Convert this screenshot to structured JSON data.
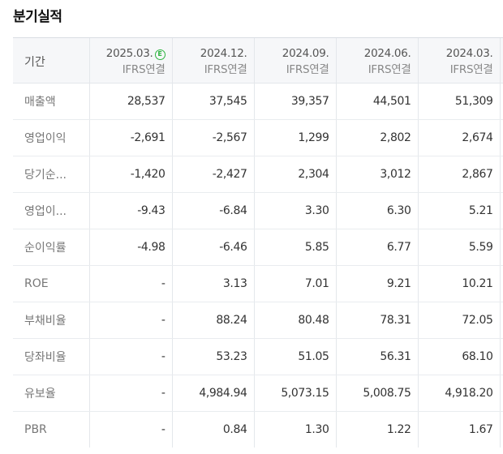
{
  "section": {
    "title": "분기실적"
  },
  "header": {
    "label": "기간",
    "columns": [
      {
        "period": "2025.03.",
        "standard": "IFRS연결",
        "estimate": true,
        "estimate_badge": "E"
      },
      {
        "period": "2024.12.",
        "standard": "IFRS연결",
        "estimate": false
      },
      {
        "period": "2024.09.",
        "standard": "IFRS연결",
        "estimate": false
      },
      {
        "period": "2024.06.",
        "standard": "IFRS연결",
        "estimate": false
      },
      {
        "period": "2024.03.",
        "standard": "IFRS연결",
        "estimate": false
      }
    ]
  },
  "rows": [
    {
      "label": "매출액",
      "values": [
        "28,537",
        "37,545",
        "39,357",
        "44,501",
        "51,309"
      ]
    },
    {
      "label": "영업이익",
      "values": [
        "-2,691",
        "-2,567",
        "1,299",
        "2,802",
        "2,674"
      ]
    },
    {
      "label": "당기순...",
      "values": [
        "-1,420",
        "-2,427",
        "2,304",
        "3,012",
        "2,867"
      ]
    },
    {
      "label": "영업이...",
      "values": [
        "-9.43",
        "-6.84",
        "3.30",
        "6.30",
        "5.21"
      ]
    },
    {
      "label": "순이익률",
      "values": [
        "-4.98",
        "-6.46",
        "5.85",
        "6.77",
        "5.59"
      ]
    },
    {
      "label": "ROE",
      "values": [
        "-",
        "3.13",
        "7.01",
        "9.21",
        "10.21"
      ]
    },
    {
      "label": "부채비율",
      "values": [
        "-",
        "88.24",
        "80.48",
        "78.31",
        "72.05"
      ]
    },
    {
      "label": "당좌비율",
      "values": [
        "-",
        "53.23",
        "51.05",
        "56.31",
        "68.10"
      ]
    },
    {
      "label": "유보율",
      "values": [
        "-",
        "4,984.94",
        "5,073.15",
        "5,008.75",
        "4,918.20"
      ]
    },
    {
      "label": "PBR",
      "values": [
        "-",
        "0.84",
        "1.30",
        "1.22",
        "1.67"
      ]
    }
  ],
  "colors": {
    "estimate_badge": "#2eb341",
    "header_bg": "#f6f7f9",
    "border": "#e4e7eb"
  }
}
